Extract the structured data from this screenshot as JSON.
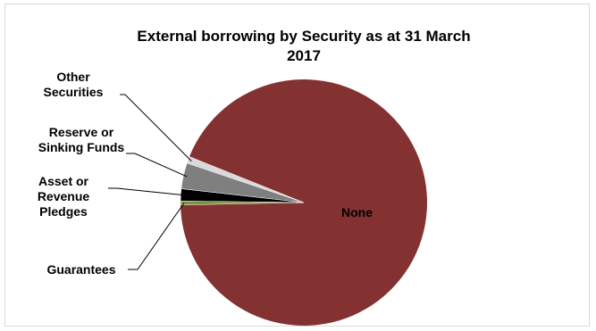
{
  "chart_data": {
    "type": "pie",
    "title_line1": "External borrowing by Security as at 31 March",
    "title_line2": "2017",
    "slices": [
      {
        "label": "None",
        "label_lines": [
          "None"
        ],
        "value": 93.6,
        "color": "#843131"
      },
      {
        "label": "Other Securities",
        "label_lines": [
          "Other",
          "Securities"
        ],
        "value": 0.9,
        "color": "#d9d9d9"
      },
      {
        "label": "Reserve or Sinking Funds",
        "label_lines": [
          "Reserve or",
          "Sinking Funds"
        ],
        "value": 3.4,
        "color": "#7f7f7f"
      },
      {
        "label": "Asset or Revenue Pledges",
        "label_lines": [
          "Asset or",
          "Revenue",
          "Pledges"
        ],
        "value": 1.6,
        "color": "#000000"
      },
      {
        "label": "Guarantees",
        "label_lines": [
          "Guarantees"
        ],
        "value": 0.5,
        "color": "#77933c"
      }
    ]
  }
}
